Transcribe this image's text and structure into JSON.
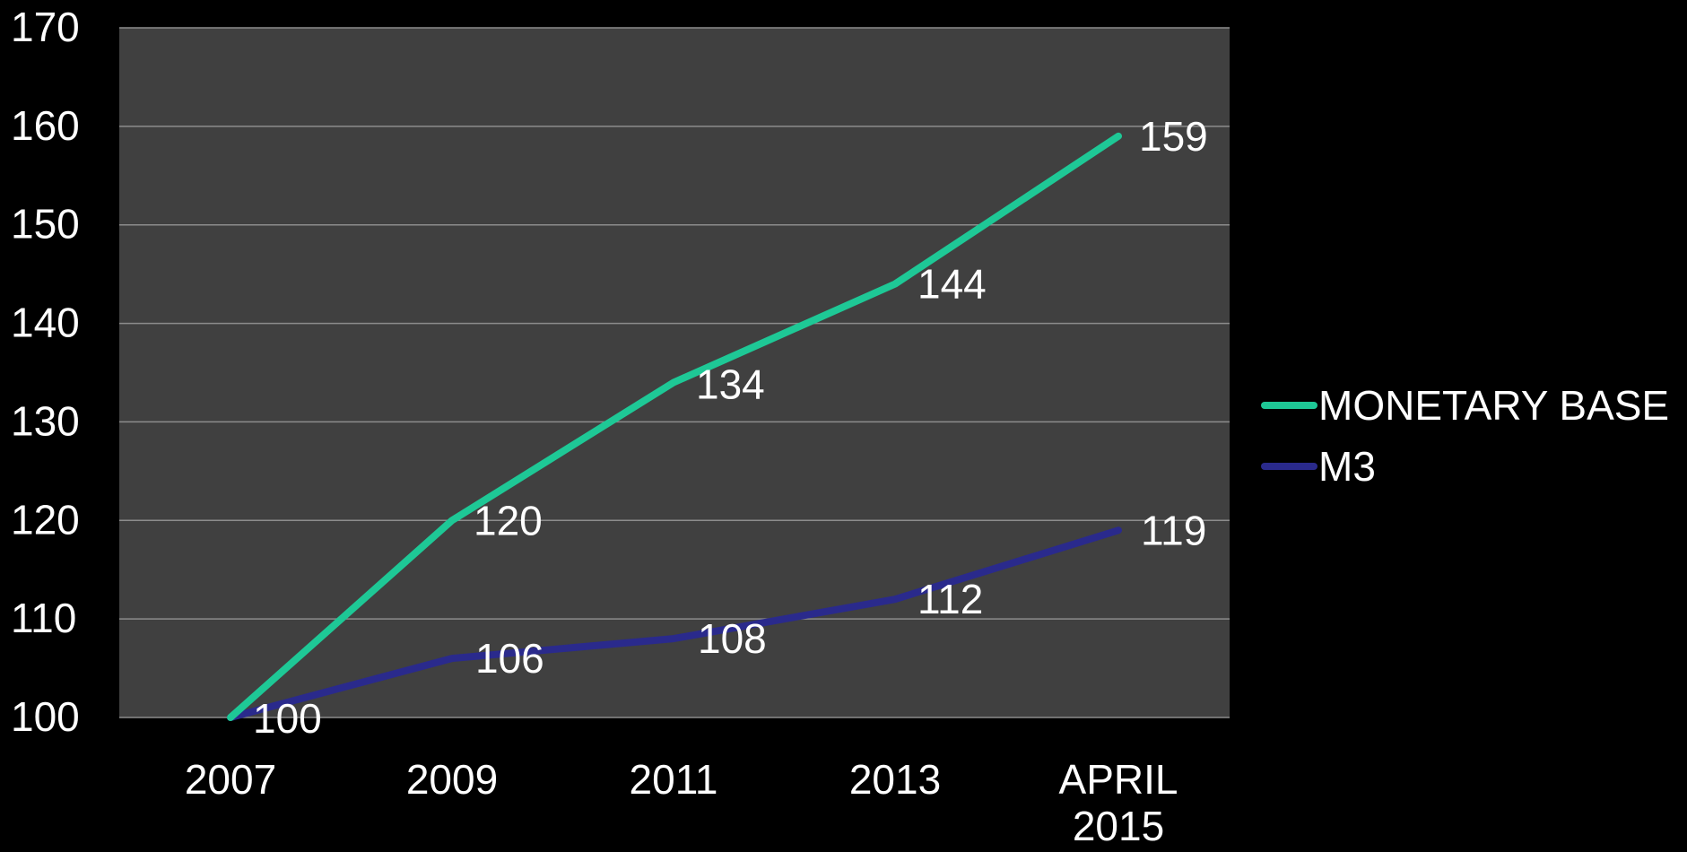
{
  "chart_data": {
    "type": "line",
    "categories": [
      "2007",
      "2009",
      "2011",
      "2013",
      "APRIL 2015"
    ],
    "series": [
      {
        "name": "MONETARY BASE",
        "values": [
          100,
          120,
          134,
          144,
          159
        ],
        "color": "#1ec896"
      },
      {
        "name": "M3",
        "values": [
          100,
          106,
          108,
          112,
          119
        ],
        "color": "#2a2a8c"
      }
    ],
    "data_labels": [
      "100",
      "120",
      "134",
      "144",
      "159",
      "106",
      "108",
      "112",
      "119"
    ],
    "yticks": [
      "100",
      "110",
      "120",
      "130",
      "140",
      "150",
      "160",
      "170"
    ],
    "ylim": [
      100,
      170
    ],
    "grid": true,
    "legend_position": "right",
    "colors": {
      "background": "#000000",
      "plot_area": "#404040",
      "gridline": "#8c8c8c",
      "text": "#ffffff"
    }
  }
}
